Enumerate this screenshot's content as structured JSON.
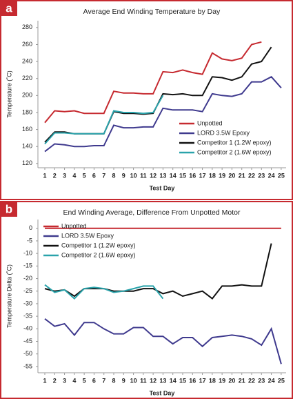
{
  "chart_data": [
    {
      "type": "line",
      "panel_label": "a",
      "title": "Average End Winding Temperature by Day",
      "x_label": "Test Day",
      "y_label": "Temperature (˚C)",
      "x": [
        1,
        2,
        3,
        4,
        5,
        6,
        7,
        8,
        9,
        10,
        11,
        12,
        13,
        14,
        15,
        16,
        17,
        18,
        19,
        20,
        21,
        22,
        23,
        24,
        25
      ],
      "xlim": [
        0.3,
        25.5
      ],
      "xticks": [
        1,
        2,
        3,
        4,
        5,
        6,
        7,
        8,
        9,
        10,
        11,
        12,
        13,
        14,
        15,
        16,
        17,
        18,
        19,
        20,
        21,
        22,
        23,
        24,
        25
      ],
      "ylim": [
        115,
        288
      ],
      "yticks": [
        120,
        140,
        160,
        180,
        200,
        220,
        240,
        260,
        280
      ],
      "legend_position": "lower right",
      "series": [
        {
          "name": "Unpotted",
          "color": "#c62a30",
          "values": [
            168,
            182,
            181,
            182,
            179,
            179,
            179,
            205,
            203,
            203,
            202,
            202,
            228,
            227,
            230,
            227,
            225,
            250,
            243,
            241,
            244,
            260,
            263,
            null,
            null
          ]
        },
        {
          "name": "LORD 3.5W Epoxy",
          "color": "#3f3a8e",
          "values": [
            134,
            143,
            142,
            140,
            140,
            141,
            141,
            165,
            162,
            162,
            163,
            163,
            185,
            183,
            183,
            183,
            181,
            202,
            200,
            199,
            202,
            216,
            216,
            222,
            209
          ]
        },
        {
          "name": "Competitor 1 (1.2W epoxy)",
          "color": "#111111",
          "values": [
            145,
            157,
            157,
            155,
            155,
            155,
            155,
            181,
            179,
            179,
            178,
            179,
            202,
            201,
            202,
            200,
            200,
            222,
            221,
            218,
            222,
            237,
            240,
            257,
            null
          ]
        },
        {
          "name": "Competitor 2 (1.6W epoxy)",
          "color": "#2aa3ab",
          "values": [
            143,
            156,
            156,
            155,
            155,
            155,
            155,
            182,
            180,
            180,
            179,
            180,
            200,
            null,
            null,
            null,
            null,
            null,
            null,
            null,
            null,
            null,
            null,
            null,
            null
          ]
        }
      ]
    },
    {
      "type": "line",
      "panel_label": "b",
      "title": "End Winding Average, Difference From Unpotted Motor",
      "x_label": "Test Day",
      "y_label": "Temperature Delta (˚C)",
      "x": [
        1,
        2,
        3,
        4,
        5,
        6,
        7,
        8,
        9,
        10,
        11,
        12,
        13,
        14,
        15,
        16,
        17,
        18,
        19,
        20,
        21,
        22,
        23,
        24,
        25
      ],
      "xlim": [
        0.3,
        25.5
      ],
      "xticks": [
        1,
        2,
        3,
        4,
        5,
        6,
        7,
        8,
        9,
        10,
        11,
        12,
        13,
        14,
        15,
        16,
        17,
        18,
        19,
        20,
        21,
        22,
        23,
        24,
        25
      ],
      "ylim": [
        -57.5,
        3.5
      ],
      "yticks": [
        0,
        -5,
        -10,
        -15,
        -20,
        -25,
        -30,
        -35,
        -40,
        -45,
        -50,
        -55
      ],
      "legend_position": "upper left",
      "series": [
        {
          "name": "Unpotted",
          "color": "#c62a30",
          "values": [
            0,
            0,
            0,
            0,
            0,
            0,
            0,
            0,
            0,
            0,
            0,
            0,
            0,
            0,
            0,
            0,
            0,
            0,
            0,
            0,
            0,
            0,
            0,
            0,
            0
          ]
        },
        {
          "name": "LORD 3.5W Epoxy",
          "color": "#3f3a8e",
          "values": [
            -36,
            -39,
            -38,
            -42.5,
            -37.5,
            -37.5,
            -40,
            -42,
            -42,
            -39.5,
            -39.5,
            -43,
            -43,
            -46,
            -43.5,
            -43.5,
            -47,
            -43.5,
            -43,
            -42.5,
            -43,
            -44,
            -46.5,
            -40,
            -54
          ]
        },
        {
          "name": "Competitor 1 (1.2W epoxy)",
          "color": "#111111",
          "values": [
            -24,
            -25,
            -24.5,
            -27,
            -24,
            -24,
            -24,
            -25,
            -25,
            -25,
            -24,
            -24,
            -26,
            -25,
            -27,
            -26,
            -25,
            -28,
            -23,
            -23,
            -22.5,
            -23,
            -23,
            -6,
            null
          ]
        },
        {
          "name": "Competitor 2 (1.6W epoxy)",
          "color": "#2aa3ab",
          "values": [
            -22.5,
            -25.5,
            -24.5,
            -28,
            -24,
            -23.5,
            -24,
            -25.5,
            -25,
            -24,
            -23,
            -23,
            -28,
            null,
            null,
            null,
            null,
            null,
            null,
            null,
            null,
            null,
            null,
            null,
            null
          ]
        }
      ]
    }
  ]
}
